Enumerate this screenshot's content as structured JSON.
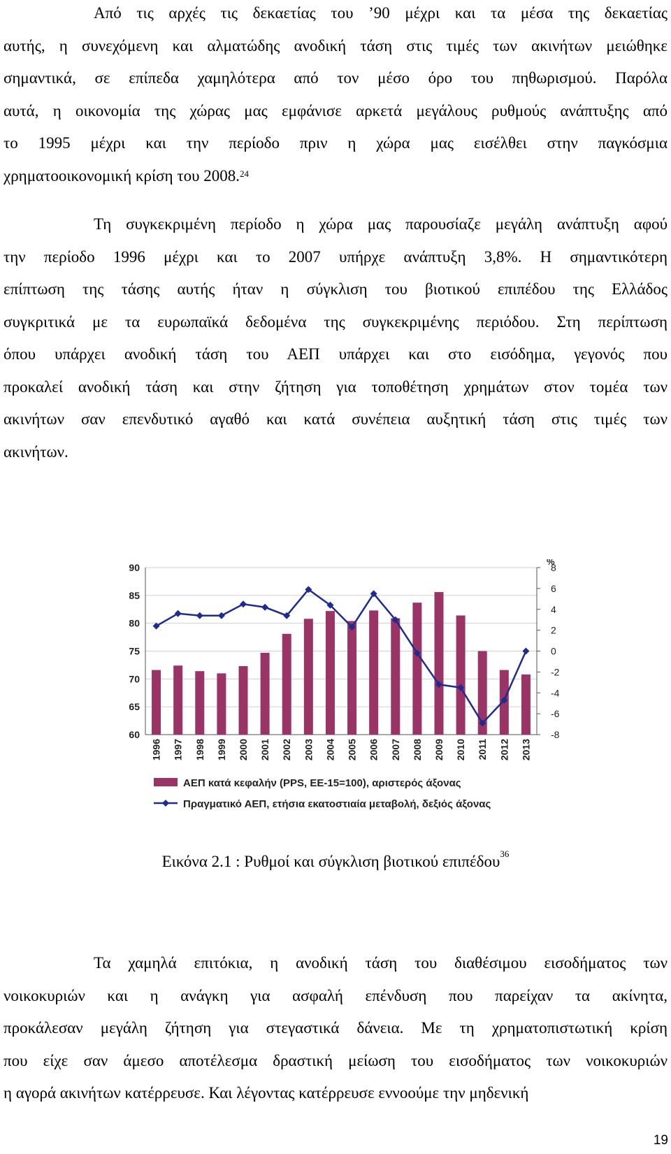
{
  "paragraph1": {
    "lines": [
      "Από τις αρχές τις δεκαετίας του ’90 μέχρι και τα μέσα της δεκαετίας",
      "αυτής, η συνεχόμενη και αλματώδης ανοδική τάση στις τιμές των ακινήτων μειώθηκε",
      "σημαντικά, σε επίπεδα χαμηλότερα από τον μέσο όρο του πηθωρισμού. Παρόλα",
      "αυτά, η οικονομία της χώρας μας εμφάνισε αρκετά μεγάλους ρυθμούς ανάπτυξης από",
      "το 1995 μέχρι και την περίοδο πριν η χώρα μας εισέλθει στην παγκόσμια",
      "χρηματοοικονομική κρίση του 2008."
    ],
    "footnote": "24"
  },
  "paragraph2": {
    "lines": [
      "Τη συγκεκριμένη περίοδο η χώρα μας παρουσίαζε μεγάλη ανάπτυξη αφού",
      "την περίοδο 1996 μέχρι και το 2007 υπήρχε ανάπτυξη 3,8%. Η σημαντικότερη",
      "επίπτωση της τάσης αυτής ήταν η σύγκλιση του βιοτικού επιπέδου της Ελλάδος",
      "συγκριτικά με τα ευρωπαϊκά δεδομένα της συγκεκριμένης περιόδου. Στη περίπτωση",
      "όπου υπάρχει ανοδική τάση του ΑΕΠ υπάρχει και στο εισόδημα, γεγονός που",
      "προκαλεί ανοδική τάση και στην ζήτηση για τοποθέτηση χρημάτων στον τομέα των",
      "ακινήτων σαν επενδυτικό αγαθό και κατά συνέπεια αυξητική τάση στις τιμές των",
      "ακινήτων."
    ]
  },
  "caption": {
    "text": "Εικόνα 2.1 : Ρυθμοί και σύγκλιση βιοτικού επιπέδου",
    "footnote": "36"
  },
  "paragraph3": {
    "lines": [
      "Τα χαμηλά επιτόκια, η ανοδική τάση του διαθέσιμου εισοδήματος των",
      "νοικοκυριών και η ανάγκη για ασφαλή επένδυση που παρείχαν τα ακίνητα,",
      "προκάλεσαν μεγάλη ζήτηση για στεγαστικά δάνεια. Με τη χρηματοπιστωτική κρίση",
      "που είχε σαν άμεσο αποτέλεσμα δραστική μείωση του εισοδήματος των νοικοκυριών",
      "η αγορά ακινήτων κατέρρευσε. Και λέγοντας κατέρρευσε εννοούμε την μηδενική"
    ]
  },
  "page_number": "19",
  "chart_data": {
    "type": "bar+line",
    "categories": [
      "1996",
      "1997",
      "1998",
      "1999",
      "2000",
      "2001",
      "2002",
      "2003",
      "2004",
      "2005",
      "2006",
      "2007",
      "2008",
      "2009",
      "2010",
      "2011",
      "2012",
      "2013"
    ],
    "series": [
      {
        "name": "ΑΕΠ κατά κεφαλήν (PPS, ΕΕ-15=100), αριστερός άξονας",
        "type": "bar",
        "axis": "left",
        "color": "#9b3466",
        "values": [
          71.6,
          72.4,
          71.4,
          71.0,
          72.3,
          74.7,
          78.1,
          80.8,
          82.2,
          80.4,
          82.3,
          80.9,
          83.7,
          85.6,
          81.4,
          75.0,
          71.6,
          70.8
        ]
      },
      {
        "name": "Πραγματικό ΑΕΠ, ετήσια εκατοστιαία μεταβολή, δεξιός άξονας",
        "type": "line",
        "axis": "right",
        "color": "#1f2b8f",
        "values": [
          2.4,
          3.6,
          3.4,
          3.4,
          4.5,
          4.2,
          3.4,
          5.9,
          4.4,
          2.3,
          5.5,
          3.0,
          -0.2,
          -3.2,
          -3.5,
          -6.9,
          -4.7,
          0.0
        ]
      }
    ],
    "left_axis": {
      "ylim": [
        60,
        90
      ],
      "ticks": [
        "60",
        "65",
        "70",
        "75",
        "80",
        "85",
        "90"
      ]
    },
    "right_axis": {
      "label": "%",
      "ylim": [
        -8,
        8
      ],
      "ticks": [
        "-8",
        "-6",
        "-4",
        "-2",
        "0",
        "2",
        "4",
        "6",
        "8"
      ]
    },
    "legend": "bottom"
  }
}
